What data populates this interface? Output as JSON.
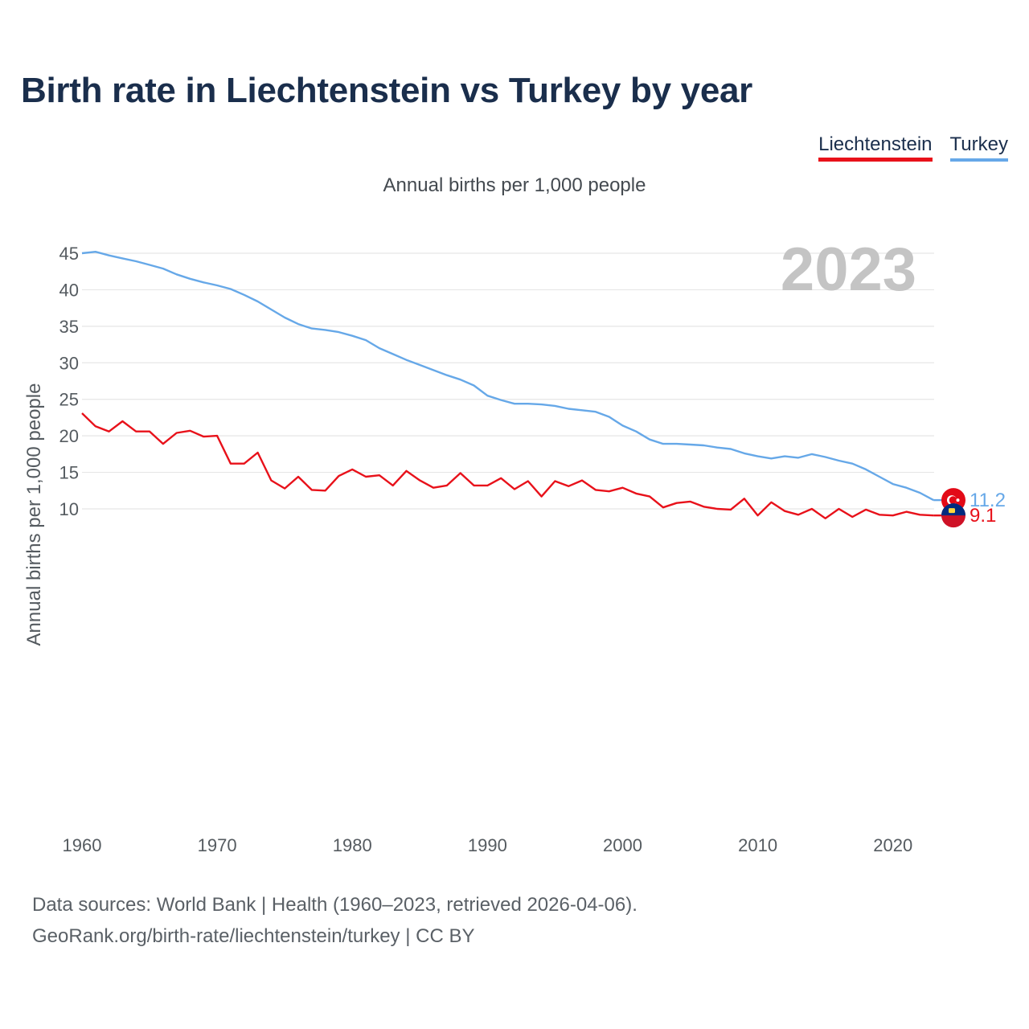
{
  "title": "Birth rate in Liechtenstein vs Turkey by year",
  "subtitle": "Annual births per 1,000 people",
  "legend": {
    "liechtenstein": "Liechtenstein",
    "turkey": "Turkey"
  },
  "source": {
    "line1": "Data sources: World Bank | Health (1960–2023, retrieved 2026-04-06).",
    "line2": "GeoRank.org/birth-rate/liechtenstein/turkey | CC BY"
  },
  "colors": {
    "liechtenstein": "#e8111a",
    "turkey": "#66a8e8",
    "grid": "#e6e6e6",
    "title": "#1a2e4c"
  },
  "chart_data": {
    "type": "line",
    "title": "Birth rate in Liechtenstein vs Turkey by year",
    "ylabel": "Annual births per 1,000 people",
    "xlabel": "",
    "xlim": [
      1960,
      2023
    ],
    "ylim": [
      6,
      47
    ],
    "yticks": [
      10,
      15,
      20,
      25,
      30,
      35,
      40,
      45
    ],
    "xticks": [
      1960,
      1970,
      1980,
      1990,
      2000,
      2010,
      2020
    ],
    "year_label": "2023",
    "x": [
      1960,
      1961,
      1962,
      1963,
      1964,
      1965,
      1966,
      1967,
      1968,
      1969,
      1970,
      1971,
      1972,
      1973,
      1974,
      1975,
      1976,
      1977,
      1978,
      1979,
      1980,
      1981,
      1982,
      1983,
      1984,
      1985,
      1986,
      1987,
      1988,
      1989,
      1990,
      1991,
      1992,
      1993,
      1994,
      1995,
      1996,
      1997,
      1998,
      1999,
      2000,
      2001,
      2002,
      2003,
      2004,
      2005,
      2006,
      2007,
      2008,
      2009,
      2010,
      2011,
      2012,
      2013,
      2014,
      2015,
      2016,
      2017,
      2018,
      2019,
      2020,
      2021,
      2022,
      2023
    ],
    "series": [
      {
        "name": "Turkey",
        "end_label": "11.2",
        "values": [
          45.0,
          45.2,
          44.7,
          44.3,
          43.9,
          43.4,
          42.9,
          42.1,
          41.5,
          41.0,
          40.6,
          40.1,
          39.3,
          38.4,
          37.3,
          36.2,
          35.3,
          34.7,
          34.5,
          34.2,
          33.7,
          33.1,
          32.0,
          31.2,
          30.4,
          29.7,
          29.0,
          28.3,
          27.7,
          26.9,
          25.5,
          24.9,
          24.4,
          24.4,
          24.3,
          24.1,
          23.7,
          23.5,
          23.3,
          22.6,
          21.4,
          20.6,
          19.5,
          18.9,
          18.9,
          18.8,
          18.7,
          18.4,
          18.2,
          17.6,
          17.2,
          16.9,
          17.2,
          17.0,
          17.5,
          17.1,
          16.6,
          16.2,
          15.4,
          14.4,
          13.4,
          12.9,
          12.2,
          11.2
        ]
      },
      {
        "name": "Liechtenstein",
        "end_label": "9.1",
        "values": [
          23.1,
          21.3,
          20.6,
          22.0,
          20.6,
          20.6,
          18.9,
          20.4,
          20.7,
          19.9,
          20.0,
          16.2,
          16.2,
          17.7,
          13.9,
          12.8,
          14.4,
          12.6,
          12.5,
          14.5,
          15.4,
          14.4,
          14.6,
          13.2,
          15.2,
          13.9,
          12.9,
          13.2,
          14.9,
          13.2,
          13.2,
          14.2,
          12.7,
          13.8,
          11.7,
          13.8,
          13.1,
          13.9,
          12.6,
          12.4,
          12.9,
          12.1,
          11.7,
          10.2,
          10.8,
          11.0,
          10.3,
          10.0,
          9.9,
          11.4,
          9.1,
          10.9,
          9.7,
          9.2,
          10.0,
          8.7,
          10.0,
          8.9,
          9.9,
          9.2,
          9.1,
          9.6,
          9.2,
          9.1
        ]
      }
    ]
  }
}
